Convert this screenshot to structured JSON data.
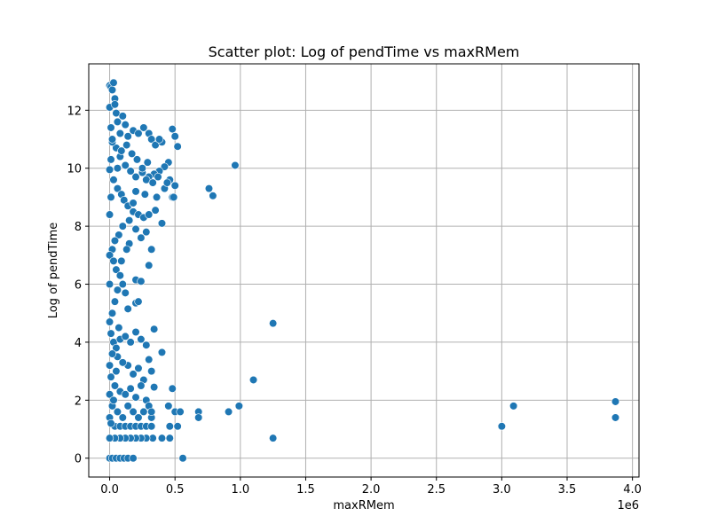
{
  "chart_data": {
    "type": "scatter",
    "title": "Scatter plot: Log of pendTime vs maxRMem",
    "xlabel": "maxRMem",
    "ylabel": "Log of pendTime",
    "x_offset_text": "1e6",
    "xlim": [
      -0.16,
      4.05
    ],
    "ylim": [
      -0.65,
      13.6
    ],
    "x_ticks": [
      0.0,
      0.5,
      1.0,
      1.5,
      2.0,
      2.5,
      3.0,
      3.5,
      4.0
    ],
    "x_tick_labels": [
      "0.0",
      "0.5",
      "1.0",
      "1.5",
      "2.0",
      "2.5",
      "3.0",
      "3.5",
      "4.0"
    ],
    "y_ticks": [
      0,
      2,
      4,
      6,
      8,
      10,
      12
    ],
    "y_tick_labels": [
      "0",
      "2",
      "4",
      "6",
      "8",
      "10",
      "12"
    ],
    "grid": true,
    "series_color": "#1f77b4",
    "points": [
      [
        0.0,
        12.85
      ],
      [
        0.01,
        12.8
      ],
      [
        0.03,
        12.95
      ],
      [
        0.02,
        12.7
      ],
      [
        0.04,
        12.4
      ],
      [
        0.0,
        12.1
      ],
      [
        0.05,
        11.9
      ],
      [
        0.06,
        11.6
      ],
      [
        0.01,
        11.4
      ],
      [
        0.08,
        11.2
      ],
      [
        0.1,
        11.8
      ],
      [
        0.12,
        11.5
      ],
      [
        0.14,
        11.1
      ],
      [
        0.18,
        11.3
      ],
      [
        0.22,
        11.2
      ],
      [
        0.26,
        11.4
      ],
      [
        0.3,
        11.2
      ],
      [
        0.32,
        11.0
      ],
      [
        0.35,
        10.8
      ],
      [
        0.4,
        10.9
      ],
      [
        0.48,
        11.35
      ],
      [
        0.5,
        11.1
      ],
      [
        0.52,
        10.75
      ],
      [
        0.45,
        10.2
      ],
      [
        0.42,
        10.05
      ],
      [
        0.38,
        9.9
      ],
      [
        0.34,
        9.8
      ],
      [
        0.3,
        9.7
      ],
      [
        0.28,
        9.6
      ],
      [
        0.25,
        9.85
      ],
      [
        0.2,
        9.7
      ],
      [
        0.16,
        9.9
      ],
      [
        0.12,
        10.1
      ],
      [
        0.08,
        10.4
      ],
      [
        0.05,
        10.7
      ],
      [
        0.02,
        10.9
      ],
      [
        0.01,
        10.3
      ],
      [
        0.0,
        9.95
      ],
      [
        0.03,
        9.6
      ],
      [
        0.06,
        9.3
      ],
      [
        0.09,
        9.1
      ],
      [
        0.11,
        8.9
      ],
      [
        0.14,
        8.7
      ],
      [
        0.18,
        8.5
      ],
      [
        0.22,
        8.4
      ],
      [
        0.26,
        8.3
      ],
      [
        0.3,
        8.4
      ],
      [
        0.35,
        8.55
      ],
      [
        0.4,
        8.1
      ],
      [
        0.48,
        9.0
      ],
      [
        0.5,
        9.4
      ],
      [
        0.46,
        9.6
      ],
      [
        0.42,
        9.3
      ],
      [
        0.36,
        9.0
      ],
      [
        0.2,
        9.2
      ],
      [
        0.15,
        8.2
      ],
      [
        0.1,
        8.0
      ],
      [
        0.07,
        7.7
      ],
      [
        0.04,
        7.5
      ],
      [
        0.02,
        7.2
      ],
      [
        0.0,
        7.0
      ],
      [
        0.03,
        6.8
      ],
      [
        0.05,
        6.5
      ],
      [
        0.08,
        6.3
      ],
      [
        0.1,
        6.0
      ],
      [
        0.12,
        5.7
      ],
      [
        0.15,
        7.4
      ],
      [
        0.2,
        7.9
      ],
      [
        0.24,
        7.6
      ],
      [
        0.28,
        7.8
      ],
      [
        0.32,
        7.2
      ],
      [
        0.3,
        6.65
      ],
      [
        0.2,
        6.15
      ],
      [
        0.24,
        6.1
      ],
      [
        0.2,
        5.35
      ],
      [
        0.22,
        5.4
      ],
      [
        0.14,
        5.15
      ],
      [
        0.06,
        5.8
      ],
      [
        0.04,
        5.4
      ],
      [
        0.02,
        5.0
      ],
      [
        0.0,
        4.7
      ],
      [
        0.01,
        4.3
      ],
      [
        0.03,
        4.0
      ],
      [
        0.05,
        3.8
      ],
      [
        0.08,
        4.1
      ],
      [
        0.12,
        4.2
      ],
      [
        0.16,
        4.0
      ],
      [
        0.2,
        4.35
      ],
      [
        0.24,
        4.1
      ],
      [
        0.28,
        3.9
      ],
      [
        0.34,
        4.45
      ],
      [
        0.3,
        3.4
      ],
      [
        0.32,
        3.0
      ],
      [
        0.26,
        2.7
      ],
      [
        0.22,
        3.1
      ],
      [
        0.18,
        2.9
      ],
      [
        0.14,
        3.2
      ],
      [
        0.1,
        3.3
      ],
      [
        0.06,
        3.5
      ],
      [
        0.02,
        3.6
      ],
      [
        0.0,
        3.2
      ],
      [
        0.01,
        2.8
      ],
      [
        0.04,
        2.5
      ],
      [
        0.08,
        2.3
      ],
      [
        0.12,
        2.2
      ],
      [
        0.16,
        2.4
      ],
      [
        0.2,
        2.1
      ],
      [
        0.24,
        2.5
      ],
      [
        0.28,
        2.0
      ],
      [
        0.34,
        2.45
      ],
      [
        0.3,
        1.8
      ],
      [
        0.26,
        1.6
      ],
      [
        0.22,
        1.4
      ],
      [
        0.18,
        1.6
      ],
      [
        0.14,
        1.8
      ],
      [
        0.1,
        1.4
      ],
      [
        0.06,
        1.6
      ],
      [
        0.02,
        1.8
      ],
      [
        0.0,
        1.4
      ],
      [
        0.04,
        1.1
      ],
      [
        0.08,
        1.1
      ],
      [
        0.12,
        1.1
      ],
      [
        0.16,
        1.1
      ],
      [
        0.2,
        1.1
      ],
      [
        0.24,
        1.1
      ],
      [
        0.28,
        1.1
      ],
      [
        0.32,
        1.1
      ],
      [
        0.32,
        1.4
      ],
      [
        0.32,
        1.6
      ],
      [
        0.4,
        3.65
      ],
      [
        0.45,
        1.8
      ],
      [
        0.48,
        2.4
      ],
      [
        0.5,
        1.6
      ],
      [
        0.46,
        1.1
      ],
      [
        0.52,
        1.1
      ],
      [
        0.54,
        1.6
      ],
      [
        0.46,
        0.69
      ],
      [
        0.4,
        0.69
      ],
      [
        0.33,
        0.69
      ],
      [
        0.28,
        0.69
      ],
      [
        0.24,
        0.69
      ],
      [
        0.2,
        0.69
      ],
      [
        0.16,
        0.69
      ],
      [
        0.12,
        0.69
      ],
      [
        0.08,
        0.69
      ],
      [
        0.04,
        0.69
      ],
      [
        0.0,
        0.69
      ],
      [
        0.0,
        0.0
      ],
      [
        0.02,
        0.0
      ],
      [
        0.05,
        0.0
      ],
      [
        0.08,
        0.0
      ],
      [
        0.11,
        0.0
      ],
      [
        0.14,
        0.0
      ],
      [
        0.18,
        0.0
      ],
      [
        0.56,
        0.0
      ],
      [
        0.68,
        1.6
      ],
      [
        0.68,
        1.4
      ],
      [
        0.91,
        1.6
      ],
      [
        0.99,
        1.8
      ],
      [
        1.1,
        2.7
      ],
      [
        1.25,
        4.65
      ],
      [
        1.25,
        0.69
      ],
      [
        0.96,
        10.1
      ],
      [
        0.76,
        9.3
      ],
      [
        0.79,
        9.05
      ],
      [
        3.0,
        1.1
      ],
      [
        3.09,
        1.8
      ],
      [
        3.87,
        1.95
      ],
      [
        3.87,
        1.4
      ],
      [
        0.0,
        2.2
      ],
      [
        0.0,
        6.0
      ],
      [
        0.0,
        8.4
      ],
      [
        0.01,
        9.0
      ],
      [
        0.02,
        11.0
      ],
      [
        0.04,
        12.2
      ],
      [
        0.06,
        10.0
      ],
      [
        0.09,
        10.6
      ],
      [
        0.13,
        10.8
      ],
      [
        0.17,
        10.5
      ],
      [
        0.21,
        10.3
      ],
      [
        0.25,
        10.0
      ],
      [
        0.29,
        10.2
      ],
      [
        0.33,
        9.5
      ],
      [
        0.37,
        9.7
      ],
      [
        0.44,
        9.5
      ],
      [
        0.49,
        9.0
      ],
      [
        0.38,
        11.0
      ],
      [
        0.27,
        9.1
      ],
      [
        0.18,
        8.8
      ],
      [
        0.13,
        7.2
      ],
      [
        0.09,
        6.8
      ],
      [
        0.07,
        4.5
      ],
      [
        0.05,
        3.0
      ],
      [
        0.03,
        2.0
      ],
      [
        0.01,
        1.2
      ]
    ]
  }
}
